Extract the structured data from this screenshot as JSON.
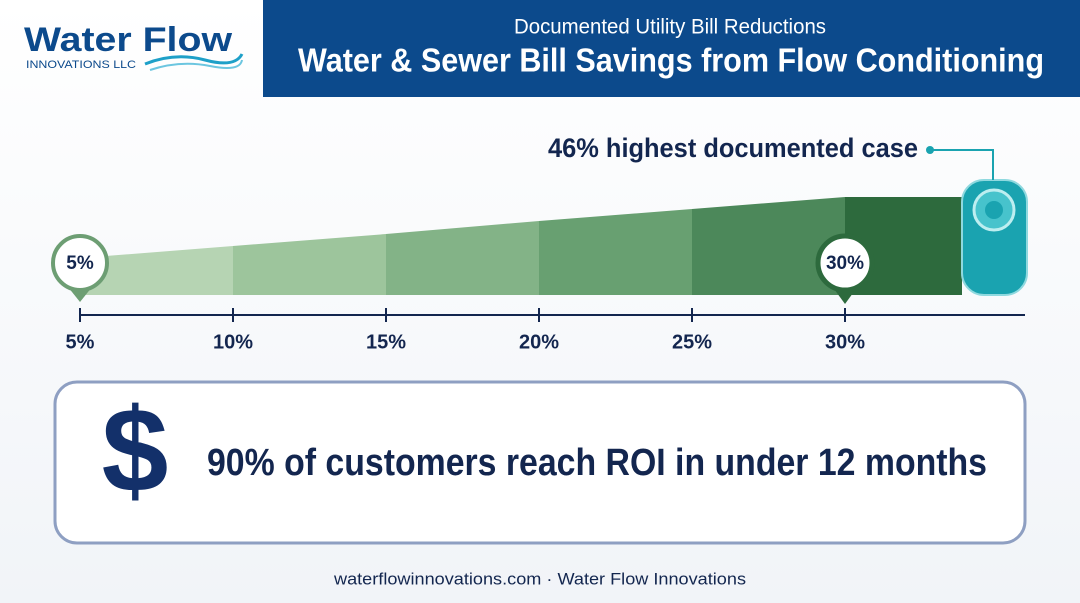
{
  "logo": {
    "name": "Water Flow",
    "sub": "INNOVATIONS LLC"
  },
  "header": {
    "subtitle": "Documented Utility Bill Reductions",
    "title": "Water & Sewer Bill Savings from Flow Conditioning"
  },
  "scale": {
    "callout": "46% highest documented case",
    "start_marker": "5%",
    "mid_marker": "30%",
    "ticks": [
      "5%",
      "10%",
      "15%",
      "20%",
      "25%",
      "30%"
    ]
  },
  "banner": {
    "icon": "$",
    "text": "90% of customers reach ROI in under 12 months"
  },
  "footer": "waterflowinnovations.com · Water Flow Innovations"
}
